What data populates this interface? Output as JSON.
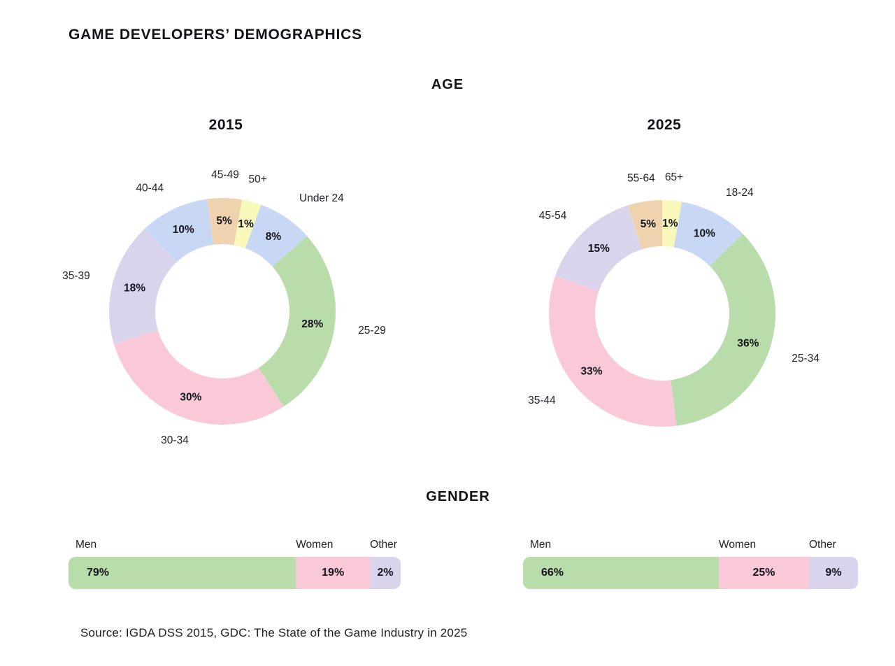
{
  "page": {
    "title": "GAME DEVELOPERS’ DEMOGRAPHICS",
    "source": "Source: IGDA DSS 2015, GDC: The State of the Game Industry in 2025"
  },
  "sections": {
    "age_title": "AGE",
    "gender_title": "GENDER"
  },
  "palette": {
    "green": "#b8dcaa",
    "pink": "#f9c9d8",
    "lavender": "#d9d3ec",
    "blue": "#c8d7f3",
    "tan": "#eed3ae",
    "yellow": "#f8f8ba",
    "text_dark": "#15151f"
  },
  "chart_data": [
    {
      "type": "donut",
      "group": "AGE",
      "title": "2015",
      "unit": "%",
      "categories": [
        "Under 24",
        "25-29",
        "30-34",
        "35-39",
        "40-44",
        "45-49",
        "50+"
      ],
      "values": [
        8,
        28,
        30,
        18,
        10,
        5,
        1
      ],
      "colors": [
        "#c8d7f3",
        "#b8dcaa",
        "#f9c9d8",
        "#d9d3ec",
        "#c8d7f3",
        "#eed3ae",
        "#f8f8ba"
      ],
      "rotation": 20,
      "category_labels": "outside",
      "value_labels": "inside-ring",
      "legend_position": "around"
    },
    {
      "type": "donut",
      "group": "AGE",
      "title": "2025",
      "unit": "%",
      "categories": [
        "18-24",
        "25-34",
        "35-44",
        "45-54",
        "55-64",
        "65+"
      ],
      "values": [
        10,
        36,
        33,
        15,
        5,
        1
      ],
      "colors": [
        "#c8d7f3",
        "#b8dcaa",
        "#f9c9d8",
        "#d9d3ec",
        "#eed3ae",
        "#f8f8ba"
      ],
      "rotation": 10,
      "category_labels": "outside",
      "value_labels": "inside-ring",
      "legend_position": "around"
    },
    {
      "type": "stacked-bar",
      "group": "GENDER",
      "title": "2015",
      "unit": "%",
      "categories": [
        "Men",
        "Women",
        "Other"
      ],
      "values": [
        79,
        19,
        2
      ],
      "colors": [
        "#b8dcaa",
        "#f9c9d8",
        "#d9d3ec"
      ],
      "category_labels": "above",
      "value_labels": "inside"
    },
    {
      "type": "stacked-bar",
      "group": "GENDER",
      "title": "2025",
      "unit": "%",
      "categories": [
        "Men",
        "Women",
        "Other"
      ],
      "values": [
        66,
        25,
        9
      ],
      "colors": [
        "#b8dcaa",
        "#f9c9d8",
        "#d9d3ec"
      ],
      "category_labels": "above",
      "value_labels": "inside"
    }
  ]
}
